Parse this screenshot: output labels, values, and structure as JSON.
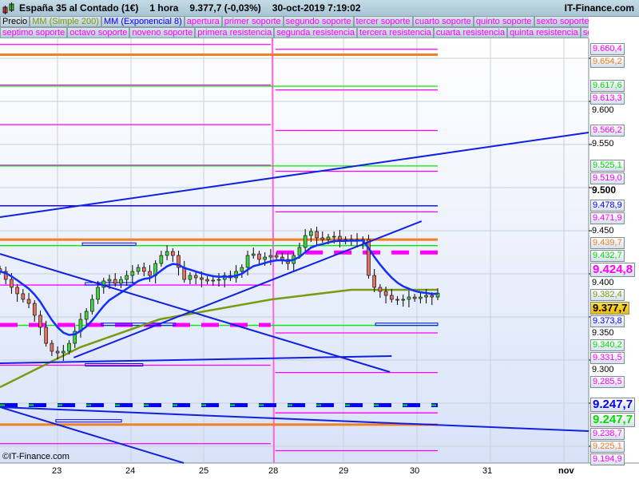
{
  "header": {
    "instrument": "España 35 al Contado (1€)",
    "timeframe": "1 hora",
    "price": "9.377,7 (-0,03%)",
    "datetime": "30-oct-2019 7:19:02",
    "brand": "IT-Finance.com"
  },
  "legend": {
    "row1": [
      {
        "label": "Precio",
        "color": "#000000"
      },
      {
        "label": "MM (Simple 200)",
        "color": "#7a9a10"
      },
      {
        "label": "MM (Exponencial 8)",
        "color": "#0000ff"
      },
      {
        "label": "apertura",
        "color": "#ff00ff"
      },
      {
        "label": "primer soporte",
        "color": "#ff00ff"
      },
      {
        "label": "segundo soporte",
        "color": "#ff00ff"
      },
      {
        "label": "tercer soporte",
        "color": "#ff00ff"
      },
      {
        "label": "cuarto soporte",
        "color": "#ff00ff"
      },
      {
        "label": "quinto soporte",
        "color": "#ff00ff"
      },
      {
        "label": "sexto soporte",
        "color": "#ff00ff"
      }
    ],
    "row2": [
      {
        "label": "septimo soporte",
        "color": "#ff00ff"
      },
      {
        "label": "octavo soporte",
        "color": "#ff00ff"
      },
      {
        "label": "noveno soporte",
        "color": "#ff00ff"
      },
      {
        "label": "primera resistencia",
        "color": "#ff00ff"
      },
      {
        "label": "segunda resistencia",
        "color": "#ff00ff"
      },
      {
        "label": "tercera resistencia",
        "color": "#ff00ff"
      },
      {
        "label": "cuarta resistencia",
        "color": "#ff00ff"
      },
      {
        "label": "quinta resistencia",
        "color": "#ff00ff"
      },
      {
        "label": "sex",
        "color": "#ff00ff"
      }
    ]
  },
  "copyright": "©IT-Finance.com",
  "chart_data": {
    "type": "candlestick",
    "title": "España 35 al Contado (1€)",
    "ylim": [
      9.18,
      9.675
    ],
    "y_ticks": [
      "9.600",
      "9.550",
      "9.500",
      "9.450",
      "9.400",
      "9.350",
      "9.300"
    ],
    "x_ticks": [
      "23",
      "24",
      "25",
      "28",
      "29",
      "30",
      "31",
      "nov"
    ],
    "grid": true,
    "closes": [
      9402.8,
      9393.5,
      9384.3,
      9376.9,
      9370.4,
      9365.7,
      9351.9,
      9338,
      9319.4,
      9310.2,
      9308.3,
      9310.2,
      9319.4,
      9333.3,
      9347.2,
      9356.5,
      9370.4,
      9384.3,
      9391.7,
      9393.5,
      9388.9,
      9393.5,
      9398.1,
      9402.8,
      9407.4,
      9402.8,
      9398.1,
      9412,
      9421.3,
      9425.9,
      9421.3,
      9407.4,
      9393.5,
      9398.1,
      9395.4,
      9393.5,
      9391.7,
      9392.6,
      9393.5,
      9398.1,
      9395.4,
      9402.8,
      9407.4,
      9421.3,
      9423.1,
      9416.7,
      9419.4,
      9421.3,
      9419.4,
      9416.7,
      9412,
      9421.3,
      9430.6,
      9444.4,
      9449.1,
      9441.7,
      9439.8,
      9442.6,
      9443.5,
      9439.8,
      9438,
      9439.8,
      9438,
      9439.8,
      9398.1,
      9384.3,
      9379.6,
      9375,
      9370.4,
      9369.4,
      9370.4,
      9373.1,
      9371.3,
      9373.1,
      9375,
      9373.1,
      9377.7
    ],
    "sma200": [
      [
        0,
        9.2685
      ],
      [
        13.9,
        9.3148
      ],
      [
        27.7,
        9.3472
      ],
      [
        47.2,
        9.3704
      ],
      [
        61,
        9.3815
      ],
      [
        76,
        9.3815
      ]
    ],
    "levels": [
      {
        "name": "apertura-left",
        "price": 9.666,
        "color": "#ff00ff",
        "from": 0,
        "to": 47
      },
      {
        "name": "r-left-1",
        "price": 9.619,
        "color": "#ff00ff",
        "from": 0,
        "to": 47
      },
      {
        "name": "r-left-2",
        "price": 9.573,
        "color": "#ff00ff",
        "from": 0,
        "to": 47
      },
      {
        "name": "r-left-3",
        "price": 9.526,
        "color": "#ff00ff",
        "from": 0,
        "to": 47
      },
      {
        "name": "r-left-4",
        "price": 9.479,
        "color": "#ff00ff",
        "from": 0,
        "to": 47
      },
      {
        "name": "s-left-1",
        "price": 9.387,
        "color": "#ff00ff",
        "from": 0,
        "to": 47
      },
      {
        "name": "s-left-2",
        "price": 9.294,
        "color": "#ff00ff",
        "from": 0,
        "to": 47
      },
      {
        "name": "s-left-3",
        "price": 9.203,
        "color": "#ff00ff",
        "from": 0,
        "to": 47
      },
      {
        "name": "orange-1",
        "price": 9.6542,
        "color": "#f08020",
        "from": 0,
        "to": 76,
        "w": 3
      },
      {
        "name": "green-1",
        "price": 9.6176,
        "color": "#00ee00",
        "from": 0,
        "to": 76
      },
      {
        "name": "green-2",
        "price": 9.5251,
        "color": "#00ee00",
        "from": 0,
        "to": 76
      },
      {
        "name": "blue-1",
        "price": 9.4789,
        "color": "#0000ff",
        "from": 0,
        "to": 76
      },
      {
        "name": "orange-2",
        "price": 9.4397,
        "color": "#f08020",
        "from": 0,
        "to": 76,
        "w": 3
      },
      {
        "name": "green-3",
        "price": 9.4327,
        "color": "#00ee00",
        "from": 0,
        "to": 76
      },
      {
        "name": "green-4",
        "price": 9.3402,
        "color": "#00ee00",
        "from": 0,
        "to": 76
      },
      {
        "name": "orange-3",
        "price": 9.2251,
        "color": "#f08020",
        "from": 0,
        "to": 76,
        "w": 3
      },
      {
        "name": "r1",
        "price": 9.6604,
        "color": "#ff00ff",
        "from": 47.8,
        "to": 76
      },
      {
        "name": "r2",
        "price": 9.6133,
        "color": "#ff00ff",
        "from": 47.8,
        "to": 76
      },
      {
        "name": "r3",
        "price": 9.5662,
        "color": "#ff00ff",
        "from": 47.8,
        "to": 76
      },
      {
        "name": "r4",
        "price": 9.519,
        "color": "#ff00ff",
        "from": 47.8,
        "to": 76
      },
      {
        "name": "r5",
        "price": 9.4719,
        "color": "#ff00ff",
        "from": 47.8,
        "to": 76
      },
      {
        "name": "s1",
        "price": 9.3315,
        "color": "#ff00ff",
        "from": 47.8,
        "to": 76
      },
      {
        "name": "s2",
        "price": 9.2855,
        "color": "#ff00ff",
        "from": 47.8,
        "to": 76
      },
      {
        "name": "s3",
        "price": 9.2387,
        "color": "#ff00ff",
        "from": 47.8,
        "to": 76
      },
      {
        "name": "s4",
        "price": 9.1949,
        "color": "#ff00ff",
        "from": 47.8,
        "to": 76
      }
    ],
    "dashed": [
      {
        "price": 9.3407,
        "color": "#ff00ff",
        "from": 0,
        "to": 47
      },
      {
        "price": 9.4248,
        "color": "#ff00ff",
        "from": 48,
        "to": 76
      },
      {
        "price": 9.2477,
        "color": "#0000ff",
        "from": 0,
        "to": 76
      }
    ],
    "trendlines": [
      [
        0,
        9.4657,
        102.2,
        9.5639
      ],
      [
        12.8,
        9.3028,
        73.2,
        9.4611
      ],
      [
        0,
        9.4231,
        67.7,
        9.2861
      ],
      [
        0,
        9.2963,
        68,
        9.3046
      ],
      [
        0,
        9.2454,
        102.2,
        9.2176
      ],
      [
        0,
        9.2454,
        31.9,
        9.1806
      ]
    ],
    "boxes": [
      [
        14.3,
        23.6,
        9.434
      ],
      [
        14.8,
        23.3,
        9.388
      ],
      [
        17.6,
        30.5,
        9.341
      ],
      [
        14.8,
        24.8,
        9.294
      ],
      [
        9.7,
        21.1,
        9.229
      ],
      [
        65.2,
        76,
        9.341
      ]
    ],
    "price_labels": [
      {
        "text": "9.660,4",
        "color": "#ff00ff"
      },
      {
        "text": "9.654,2",
        "color": "#f08020"
      },
      {
        "text": "9.617,6",
        "color": "#00dd00"
      },
      {
        "text": "9.613,3",
        "color": "#ff00ff"
      },
      {
        "text": "9.566,2",
        "color": "#ff00ff"
      },
      {
        "text": "9.525,1",
        "color": "#00dd00"
      },
      {
        "text": "9.519,0",
        "color": "#ff00ff"
      },
      {
        "text": "9.478,9",
        "color": "#0000ff"
      },
      {
        "text": "9.471,9",
        "color": "#ff00ff"
      },
      {
        "text": "9.439,7",
        "color": "#f08020"
      },
      {
        "text": "9.432,7",
        "color": "#00dd00"
      },
      {
        "text": "9.424,8",
        "color": "#ff00ff",
        "big": true
      },
      {
        "text": "9.382,4",
        "color": "#7a9a10"
      },
      {
        "text": "9.373,8",
        "color": "#0000ff"
      },
      {
        "text": "9.377,7",
        "color": "#000000",
        "current": true
      },
      {
        "text": "9.340,2",
        "color": "#00dd00"
      },
      {
        "text": "9.331,5",
        "color": "#ff00ff"
      },
      {
        "text": "9.285,5",
        "color": "#ff00ff"
      },
      {
        "text": "9.238,7",
        "color": "#ff00ff"
      },
      {
        "text": "9.247,7",
        "color": "#0000ff",
        "big": true
      },
      {
        "text": "9.247,7",
        "color": "#00dd00",
        "big": true
      },
      {
        "text": "9.225,1",
        "color": "#f08020"
      },
      {
        "text": "9.194,9",
        "color": "#ff00ff"
      }
    ]
  }
}
